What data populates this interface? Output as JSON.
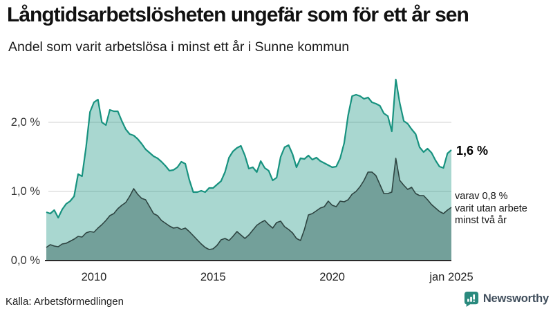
{
  "chart_data": {
    "type": "area",
    "title": "Långtidsarbetslösheten ungefär som för ett år sen",
    "subtitle": "Andel som varit arbetslösa i minst ett år i Sunne kommun",
    "source": "Källa: Arbetsförmedlingen",
    "unit": "%",
    "grid": true,
    "legend_position": "none (direct labels at right edge of lines)",
    "x_domain": {
      "start": "2008-01",
      "end": "2025-01",
      "months": 204
    },
    "xticks": [
      {
        "label": "2010",
        "month": 24
      },
      {
        "label": "2015",
        "month": 84
      },
      {
        "label": "2020",
        "month": 144
      },
      {
        "label": "jan 2025",
        "month": 204
      }
    ],
    "yticks": [
      {
        "label": "0,0 %",
        "value": 0
      },
      {
        "label": "1,0 %",
        "value": 1
      },
      {
        "label": "2,0 %",
        "value": 2
      }
    ],
    "ylim": [
      0,
      2.7
    ],
    "series": [
      {
        "name": "Andel arbetslösa minst ett år (totalt)",
        "line_color": "#17927f",
        "fill_color": "rgba(23,146,127,0.37)",
        "line_width": 2.2,
        "values": [
          0.7,
          0.68,
          0.73,
          0.62,
          0.74,
          0.82,
          0.86,
          0.93,
          1.25,
          1.22,
          1.64,
          2.15,
          2.29,
          2.33,
          2.0,
          1.96,
          2.18,
          2.16,
          2.16,
          2.02,
          1.9,
          1.83,
          1.81,
          1.76,
          1.69,
          1.61,
          1.56,
          1.51,
          1.48,
          1.43,
          1.37,
          1.3,
          1.31,
          1.35,
          1.43,
          1.4,
          1.17,
          0.99,
          0.99,
          1.01,
          0.99,
          1.05,
          1.05,
          1.1,
          1.15,
          1.28,
          1.49,
          1.58,
          1.63,
          1.66,
          1.52,
          1.33,
          1.35,
          1.28,
          1.44,
          1.34,
          1.3,
          1.16,
          1.2,
          1.5,
          1.64,
          1.67,
          1.54,
          1.35,
          1.48,
          1.47,
          1.52,
          1.46,
          1.49,
          1.44,
          1.41,
          1.38,
          1.35,
          1.36,
          1.48,
          1.7,
          2.1,
          2.38,
          2.4,
          2.38,
          2.34,
          2.36,
          2.29,
          2.27,
          2.24,
          2.13,
          2.09,
          1.87,
          2.62,
          2.28,
          2.02,
          1.98,
          1.9,
          1.83,
          1.64,
          1.57,
          1.62,
          1.56,
          1.45,
          1.36,
          1.34,
          1.55,
          1.6
        ]
      },
      {
        "name": "Varav utan arbete minst två år",
        "line_color": "#2e4441",
        "fill_color": "#73a09a",
        "line_width": 1.6,
        "values": [
          0.19,
          0.23,
          0.21,
          0.2,
          0.24,
          0.25,
          0.28,
          0.31,
          0.35,
          0.34,
          0.4,
          0.42,
          0.41,
          0.47,
          0.52,
          0.58,
          0.65,
          0.68,
          0.75,
          0.8,
          0.84,
          0.93,
          1.04,
          0.96,
          0.9,
          0.88,
          0.78,
          0.68,
          0.65,
          0.58,
          0.54,
          0.5,
          0.47,
          0.48,
          0.45,
          0.47,
          0.42,
          0.36,
          0.3,
          0.24,
          0.19,
          0.16,
          0.17,
          0.22,
          0.3,
          0.32,
          0.29,
          0.35,
          0.42,
          0.37,
          0.32,
          0.37,
          0.44,
          0.51,
          0.55,
          0.58,
          0.52,
          0.47,
          0.55,
          0.57,
          0.49,
          0.45,
          0.4,
          0.32,
          0.29,
          0.45,
          0.66,
          0.68,
          0.72,
          0.76,
          0.78,
          0.86,
          0.8,
          0.78,
          0.86,
          0.85,
          0.88,
          0.96,
          1.0,
          1.07,
          1.16,
          1.28,
          1.28,
          1.23,
          1.1,
          0.97,
          0.97,
          0.99,
          1.48,
          1.16,
          1.09,
          1.03,
          1.06,
          0.97,
          0.94,
          0.94,
          0.88,
          0.81,
          0.76,
          0.71,
          0.68,
          0.73,
          0.77
        ]
      }
    ],
    "end_labels": {
      "total": "1,6 %",
      "two_years_note": [
        "varav 0,8 %",
        "varit utan arbete",
        "minst två år"
      ]
    }
  },
  "branding": {
    "name": "Newsworthy",
    "icon": "newsworthy-bar-chart-bubble"
  },
  "colors": {
    "accent_teal_line": "#17927f",
    "area_light_fill": "rgba(23,146,127,0.37)",
    "area_dark_fill": "#73a09a",
    "dark_line": "#2e4441",
    "gridline": "#d9d9d9",
    "axis_baseline": "#2b2b2b",
    "brand_teal": "#2a8a7e",
    "brand_text": "#3f4d5b"
  }
}
